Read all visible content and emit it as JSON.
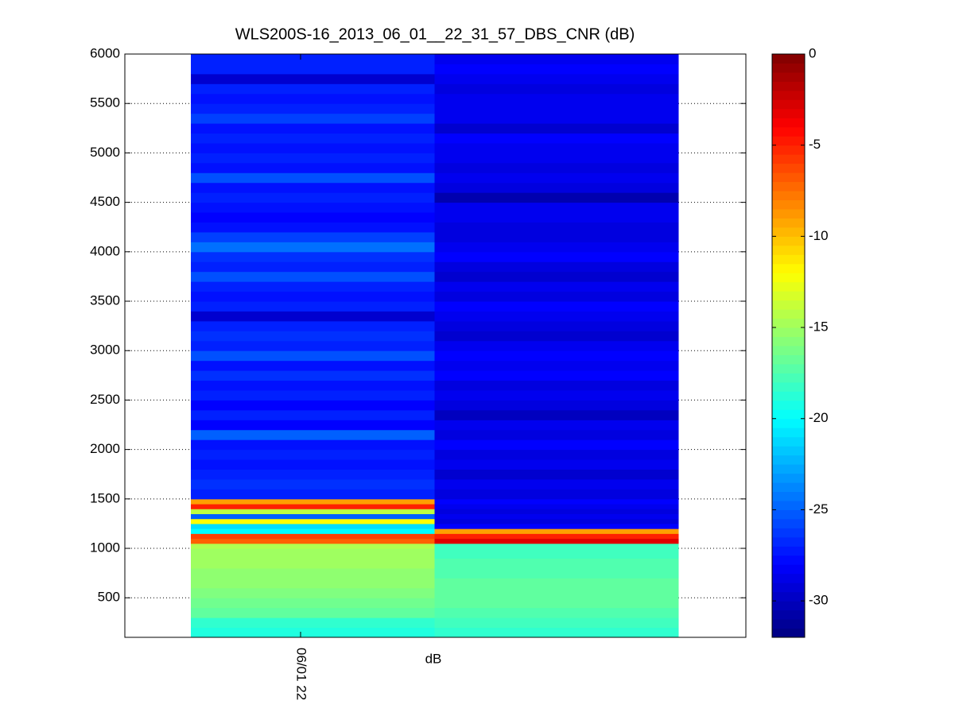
{
  "chart_data": {
    "type": "heatmap",
    "title": "WLS200S-16_2013_06_01__22_31_57_DBS_CNR (dB)",
    "xlabel": "dB",
    "columns": [
      "06/01 22",
      null
    ],
    "y_edges": [
      100,
      200,
      300,
      400,
      500,
      600,
      700,
      800,
      900,
      1000,
      1050,
      1100,
      1150,
      1200,
      1250,
      1300,
      1350,
      1400,
      1450,
      1500,
      1600,
      1700,
      1800,
      1900,
      2000,
      2100,
      2200,
      2300,
      2400,
      2500,
      2600,
      2700,
      2800,
      2900,
      3000,
      3100,
      3200,
      3300,
      3400,
      3500,
      3600,
      3700,
      3800,
      3900,
      4000,
      4100,
      4200,
      4300,
      4400,
      4500,
      4600,
      4700,
      4800,
      4900,
      5000,
      5100,
      5200,
      5300,
      5400,
      5500,
      5600,
      5700,
      5800,
      5900,
      6000
    ],
    "values": [
      [
        -19,
        -18.5,
        -17,
        -16.5,
        -16,
        -15.5,
        -15.5,
        -15,
        -15,
        -14.5,
        -7,
        -6,
        -20,
        -21,
        -12,
        -25,
        -14,
        -5,
        -9,
        -27,
        -26.5,
        -27,
        -27.5,
        -27,
        -27.5,
        -25,
        -28,
        -27,
        -28,
        -27,
        -27.5,
        -26.5,
        -27.5,
        -25.5,
        -27,
        -26.5,
        -27,
        -29.5,
        -27,
        -27.5,
        -27,
        -25.5,
        -27,
        -26.5,
        -24.5,
        -26,
        -27.5,
        -28,
        -27.5,
        -27,
        -27.5,
        -25.5,
        -27.5,
        -27,
        -27.5,
        -27,
        -27.5,
        -26,
        -27,
        -27.5,
        -27,
        -29.5,
        -27,
        -27
      ],
      [
        -18.5,
        -18,
        -17.5,
        -17,
        -17,
        -17,
        -17.5,
        -17.5,
        -18,
        -18,
        -3,
        -5,
        -9,
        -28,
        -29,
        -28.5,
        -29,
        -28.5,
        -28,
        -29,
        -28.5,
        -29.5,
        -28.5,
        -29,
        -28,
        -29,
        -28.5,
        -30,
        -29,
        -28.5,
        -29,
        -28,
        -28.5,
        -28,
        -28.5,
        -29.5,
        -29,
        -28.5,
        -28,
        -29,
        -28.5,
        -29.5,
        -29,
        -28,
        -28.5,
        -29,
        -29,
        -28.5,
        -28.5,
        -30.5,
        -29,
        -28.5,
        -29,
        -28.5,
        -28.5,
        -28,
        -29.5,
        -28.5,
        -28.5,
        -28.5,
        -29,
        -28.5,
        -28,
        -28.5
      ]
    ],
    "ylim": [
      100,
      6000
    ],
    "yticks": [
      500,
      1000,
      1500,
      2000,
      2500,
      3000,
      3500,
      4000,
      4500,
      5000,
      5500,
      6000
    ],
    "grid": true,
    "colormap": "jet",
    "clim": [
      -32,
      0
    ],
    "cticks": [
      0,
      -5,
      -10,
      -15,
      -20,
      -25,
      -30
    ]
  }
}
